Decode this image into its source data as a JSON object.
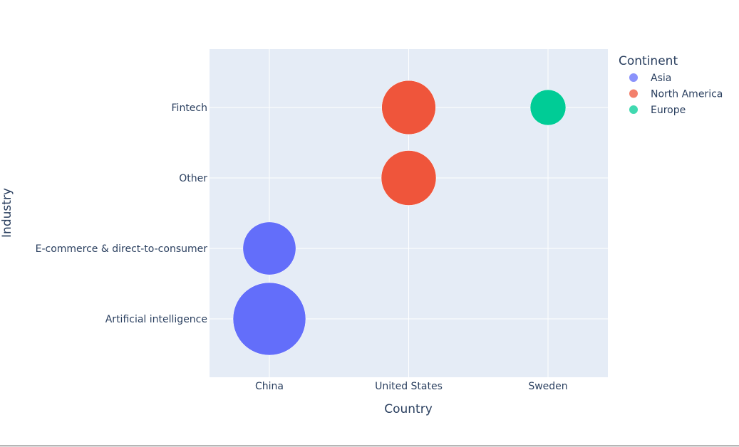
{
  "chart_data": {
    "type": "scatter",
    "title": "",
    "xlabel": "Country",
    "ylabel": "Industry",
    "x_categories": [
      "China",
      "United States",
      "Sweden"
    ],
    "y_categories": [
      "Artificial intelligence",
      "E-commerce & direct-to-consumer",
      "Other",
      "Fintech"
    ],
    "grid": true,
    "legend": {
      "title": "Continent",
      "placement": "top-right",
      "entries": [
        {
          "name": "Asia",
          "color": "#636efa"
        },
        {
          "name": "North America",
          "color": "#ef553b"
        },
        {
          "name": "Europe",
          "color": "#00cc96"
        }
      ]
    },
    "series": [
      {
        "name": "Asia",
        "color": "#636efa",
        "points": [
          {
            "x": "China",
            "y": "Artificial intelligence",
            "size": 100
          },
          {
            "x": "China",
            "y": "E-commerce & direct-to-consumer",
            "size": 53
          }
        ]
      },
      {
        "name": "North America",
        "color": "#ef553b",
        "points": [
          {
            "x": "United States",
            "y": "Fintech",
            "size": 55
          },
          {
            "x": "United States",
            "y": "Other",
            "size": 57
          }
        ]
      },
      {
        "name": "Europe",
        "color": "#00cc96",
        "points": [
          {
            "x": "Sweden",
            "y": "Fintech",
            "size": 24
          }
        ]
      }
    ]
  },
  "colors": {
    "plot_background": "#e5ecf6",
    "grid": "#ffffff",
    "text": "#2a3f5f"
  }
}
